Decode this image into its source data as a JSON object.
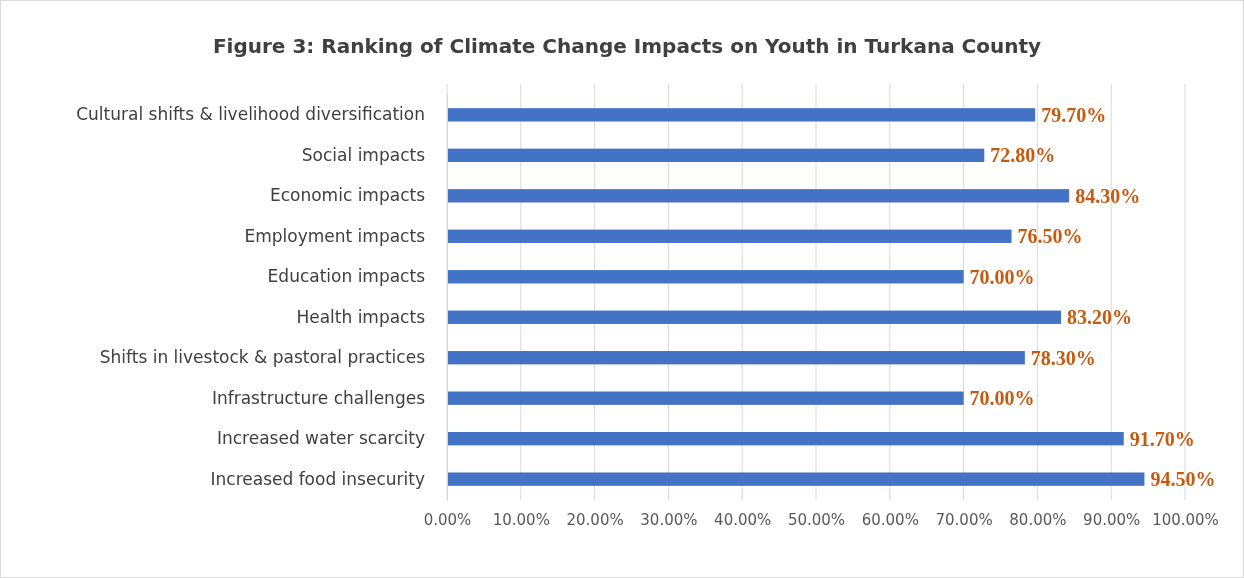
{
  "chart_data": {
    "type": "bar",
    "orientation": "horizontal",
    "title": "Figure 3: Ranking of Climate Change Impacts on Youth in Turkana County",
    "categories": [
      "Cultural shifts & livelihood diversification",
      "Social impacts",
      "Economic impacts",
      "Employment impacts",
      "Education impacts",
      "Health impacts",
      "Shifts in livestock & pastoral practices",
      "Infrastructure challenges",
      "Increased water scarcity ",
      "Increased food insecurity"
    ],
    "values": [
      79.7,
      72.8,
      84.3,
      76.5,
      70.0,
      83.2,
      78.3,
      70.0,
      91.7,
      94.5
    ],
    "value_labels": [
      "79.70%",
      "72.80%",
      "84.30%",
      "76.50%",
      "70.00%",
      "83.20%",
      "78.30%",
      "70.00%",
      "91.70%",
      "94.50%"
    ],
    "color": "#4472c4",
    "xlim": [
      0,
      100
    ],
    "xticks": [
      {
        "value": 0,
        "label": "0.00%"
      },
      {
        "value": 10,
        "label": "10.00%"
      },
      {
        "value": 20,
        "label": "20.00%"
      },
      {
        "value": 30,
        "label": "30.00%"
      },
      {
        "value": 40,
        "label": "40.00%"
      },
      {
        "value": 50,
        "label": "50.00%"
      },
      {
        "value": 60,
        "label": "60.00%"
      },
      {
        "value": 70,
        "label": "70.00%"
      },
      {
        "value": 80,
        "label": "80.00%"
      },
      {
        "value": 90,
        "label": "90.00%"
      },
      {
        "value": 100,
        "label": "100.00%"
      }
    ],
    "grid": "x"
  }
}
